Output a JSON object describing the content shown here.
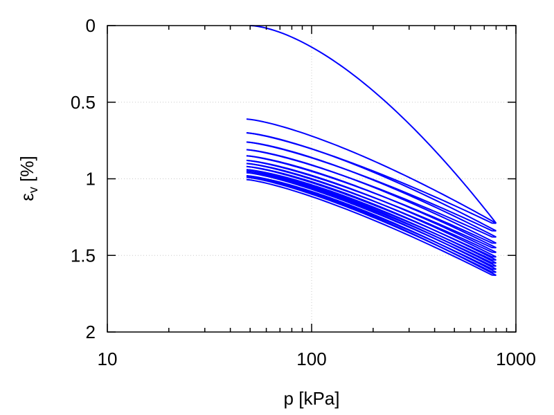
{
  "chart_data": {
    "type": "line",
    "xlabel": "p [kPa]",
    "ylabel_main": "ε",
    "ylabel_sub": "v",
    "ylabel_rest": " [%]",
    "xscale": "log",
    "xlim": [
      10,
      1000
    ],
    "ylim": [
      0,
      2
    ],
    "y_inverted": true,
    "grid": true,
    "x_major_ticks": [
      10,
      100,
      1000
    ],
    "x_tick_labels": [
      "10",
      "100",
      "1000"
    ],
    "y_ticks": [
      0,
      0.5,
      1,
      1.5,
      2
    ],
    "y_tick_labels": [
      "0",
      "0.5",
      "1",
      "1.5",
      "2"
    ],
    "line_color": "#0000ff",
    "initial_loading": {
      "p_start": 50,
      "p_end": 800,
      "ev_start": 0,
      "ev_end": 1.29
    },
    "cycles": [
      {
        "ev_top": 0.61,
        "ev_bottom": 1.29
      },
      {
        "ev_top": 0.7,
        "ev_bottom": 1.34
      },
      {
        "ev_top": 0.76,
        "ev_bottom": 1.38
      },
      {
        "ev_top": 0.81,
        "ev_bottom": 1.42
      },
      {
        "ev_top": 0.85,
        "ev_bottom": 1.45
      },
      {
        "ev_top": 0.88,
        "ev_bottom": 1.48
      },
      {
        "ev_top": 0.9,
        "ev_bottom": 1.51
      },
      {
        "ev_top": 0.92,
        "ev_bottom": 1.53
      },
      {
        "ev_top": 0.94,
        "ev_bottom": 1.55
      },
      {
        "ev_top": 0.95,
        "ev_bottom": 1.57
      },
      {
        "ev_top": 0.96,
        "ev_bottom": 1.59
      },
      {
        "ev_top": 0.98,
        "ev_bottom": 1.61
      },
      {
        "ev_top": 0.99,
        "ev_bottom": 1.63
      }
    ],
    "p_min": 48,
    "p_max": 800
  }
}
